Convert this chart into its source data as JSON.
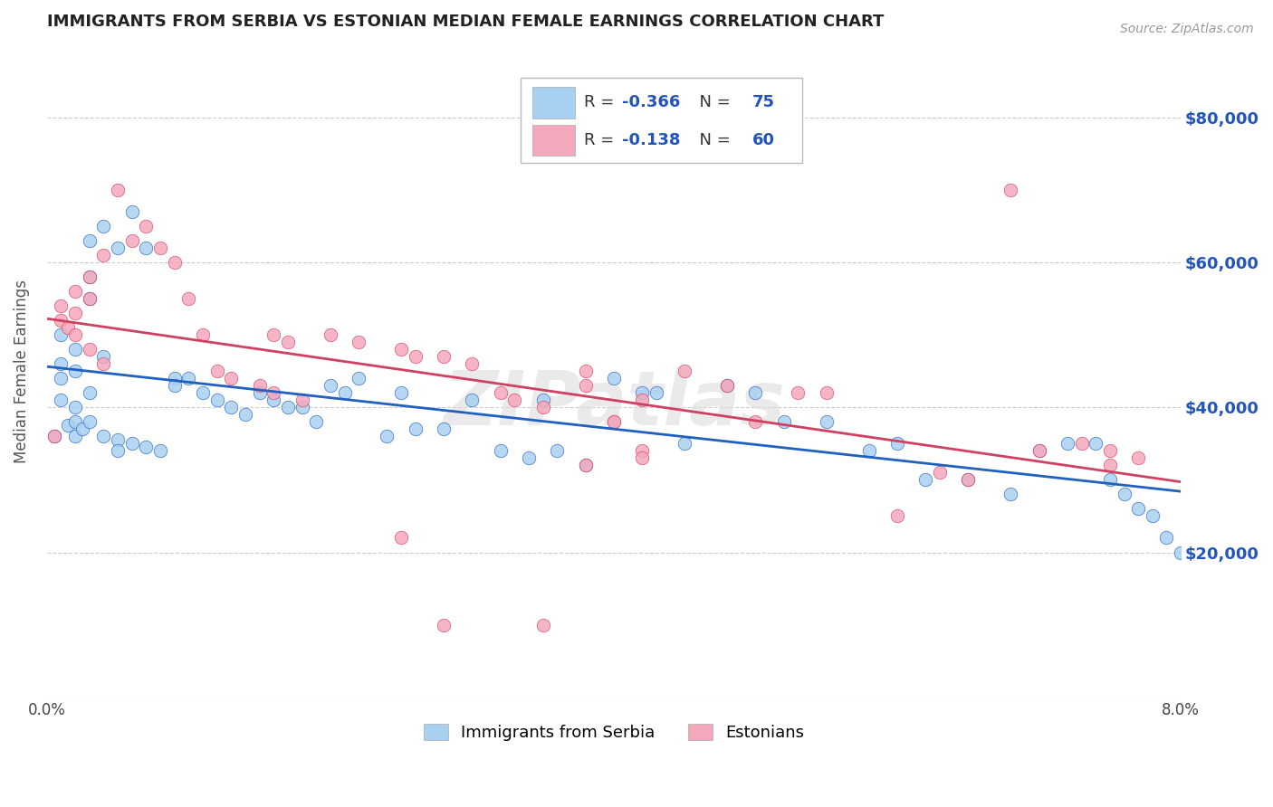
{
  "title": "IMMIGRANTS FROM SERBIA VS ESTONIAN MEDIAN FEMALE EARNINGS CORRELATION CHART",
  "source": "Source: ZipAtlas.com",
  "ylabel": "Median Female Earnings",
  "legend1_label": "Immigrants from Serbia",
  "legend2_label": "Estonians",
  "R1": -0.366,
  "N1": 75,
  "R2": -0.138,
  "N2": 60,
  "xlim": [
    0.0,
    0.08
  ],
  "ylim": [
    0,
    90000
  ],
  "yticks": [
    0,
    20000,
    40000,
    60000,
    80000
  ],
  "xticks": [
    0.0,
    0.01,
    0.02,
    0.03,
    0.04,
    0.05,
    0.06,
    0.07,
    0.08
  ],
  "xtick_labels": [
    "0.0%",
    "",
    "",
    "",
    "",
    "",
    "",
    "",
    "8.0%"
  ],
  "color_serbia": "#A8D0F0",
  "color_estonia": "#F4A8BC",
  "color_serbia_line": "#2060C0",
  "color_estonia_line": "#D04060",
  "color_axis_labels": "#2255BB",
  "background_color": "#FFFFFF",
  "watermark": "ZIPatlas",
  "serbia_x": [
    0.0005,
    0.001,
    0.001,
    0.001,
    0.001,
    0.0015,
    0.002,
    0.002,
    0.002,
    0.002,
    0.002,
    0.0025,
    0.003,
    0.003,
    0.003,
    0.003,
    0.003,
    0.004,
    0.004,
    0.004,
    0.005,
    0.005,
    0.005,
    0.006,
    0.006,
    0.007,
    0.007,
    0.008,
    0.009,
    0.009,
    0.01,
    0.011,
    0.012,
    0.013,
    0.014,
    0.015,
    0.016,
    0.017,
    0.018,
    0.019,
    0.02,
    0.021,
    0.022,
    0.024,
    0.025,
    0.026,
    0.028,
    0.03,
    0.032,
    0.034,
    0.035,
    0.036,
    0.038,
    0.04,
    0.042,
    0.043,
    0.045,
    0.048,
    0.05,
    0.052,
    0.055,
    0.058,
    0.06,
    0.062,
    0.065,
    0.068,
    0.07,
    0.072,
    0.074,
    0.075,
    0.076,
    0.077,
    0.078,
    0.079,
    0.08
  ],
  "serbia_y": [
    36000,
    50000,
    46000,
    44000,
    41000,
    37500,
    45000,
    48000,
    40000,
    38000,
    36000,
    37000,
    63000,
    58000,
    55000,
    42000,
    38000,
    65000,
    47000,
    36000,
    62000,
    35500,
    34000,
    67000,
    35000,
    62000,
    34500,
    34000,
    44000,
    43000,
    44000,
    42000,
    41000,
    40000,
    39000,
    42000,
    41000,
    40000,
    40000,
    38000,
    43000,
    42000,
    44000,
    36000,
    42000,
    37000,
    37000,
    41000,
    34000,
    33000,
    41000,
    34000,
    32000,
    44000,
    42000,
    42000,
    35000,
    43000,
    42000,
    38000,
    38000,
    34000,
    35000,
    30000,
    30000,
    28000,
    34000,
    35000,
    35000,
    30000,
    28000,
    26000,
    25000,
    22000,
    20000
  ],
  "estonia_x": [
    0.0005,
    0.001,
    0.001,
    0.0015,
    0.002,
    0.002,
    0.002,
    0.003,
    0.003,
    0.003,
    0.004,
    0.004,
    0.005,
    0.006,
    0.007,
    0.008,
    0.009,
    0.01,
    0.011,
    0.012,
    0.013,
    0.015,
    0.016,
    0.016,
    0.017,
    0.018,
    0.02,
    0.022,
    0.025,
    0.026,
    0.028,
    0.03,
    0.032,
    0.033,
    0.035,
    0.038,
    0.038,
    0.04,
    0.042,
    0.045,
    0.048,
    0.05,
    0.053,
    0.055,
    0.06,
    0.063,
    0.065,
    0.068,
    0.07,
    0.073,
    0.075,
    0.077,
    0.035,
    0.038,
    0.04,
    0.042,
    0.025,
    0.028,
    0.042,
    0.075
  ],
  "estonia_y": [
    36000,
    54000,
    52000,
    51000,
    56000,
    53000,
    50000,
    58000,
    55000,
    48000,
    61000,
    46000,
    70000,
    63000,
    65000,
    62000,
    60000,
    55000,
    50000,
    45000,
    44000,
    43000,
    42000,
    50000,
    49000,
    41000,
    50000,
    49000,
    48000,
    47000,
    47000,
    46000,
    42000,
    41000,
    40000,
    45000,
    43000,
    38000,
    41000,
    45000,
    43000,
    38000,
    42000,
    42000,
    25000,
    31000,
    30000,
    70000,
    34000,
    35000,
    34000,
    33000,
    10000,
    32000,
    38000,
    34000,
    22000,
    10000,
    33000,
    32000
  ]
}
